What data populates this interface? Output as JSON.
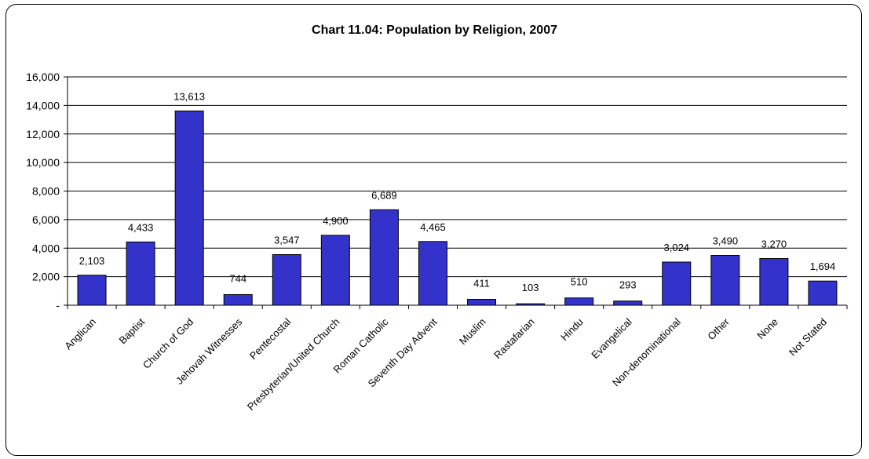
{
  "chart_data": {
    "type": "bar",
    "title": "Chart 11.04: Population by Religion, 2007",
    "categories": [
      "Anglican",
      "Baptist",
      "Church of God",
      "Jehovah Witnesses",
      "Pentecostal",
      "Presbyterian/United Church",
      "Roman Catholic",
      "Seventh Day Advent",
      "Muslim",
      "Rastafarian",
      "Hindu",
      "Evangelical",
      "Non-denominational",
      "Other",
      "None",
      "Not Stated"
    ],
    "values": [
      2103,
      4433,
      13613,
      744,
      3547,
      4900,
      6689,
      4465,
      411,
      103,
      510,
      293,
      3024,
      3490,
      3270,
      1694
    ],
    "value_labels": [
      "2,103",
      "4,433",
      "13,613",
      "744",
      "3,547",
      "4,900",
      "6,689",
      "4,465",
      "411",
      "103",
      "510",
      "293",
      "3,024",
      "3,490",
      "3,270",
      "1,694"
    ],
    "ylim": [
      0,
      16000
    ],
    "yticks": [
      0,
      2000,
      4000,
      6000,
      8000,
      10000,
      12000,
      14000,
      16000
    ],
    "ytick_labels": [
      "-",
      "2,000",
      "4,000",
      "6,000",
      "8,000",
      "10,000",
      "12,000",
      "14,000",
      "16,000"
    ],
    "xlabel": "",
    "ylabel": "",
    "grid": true,
    "bar_color": "#3333CC",
    "bar_edge_color": "#000000"
  }
}
